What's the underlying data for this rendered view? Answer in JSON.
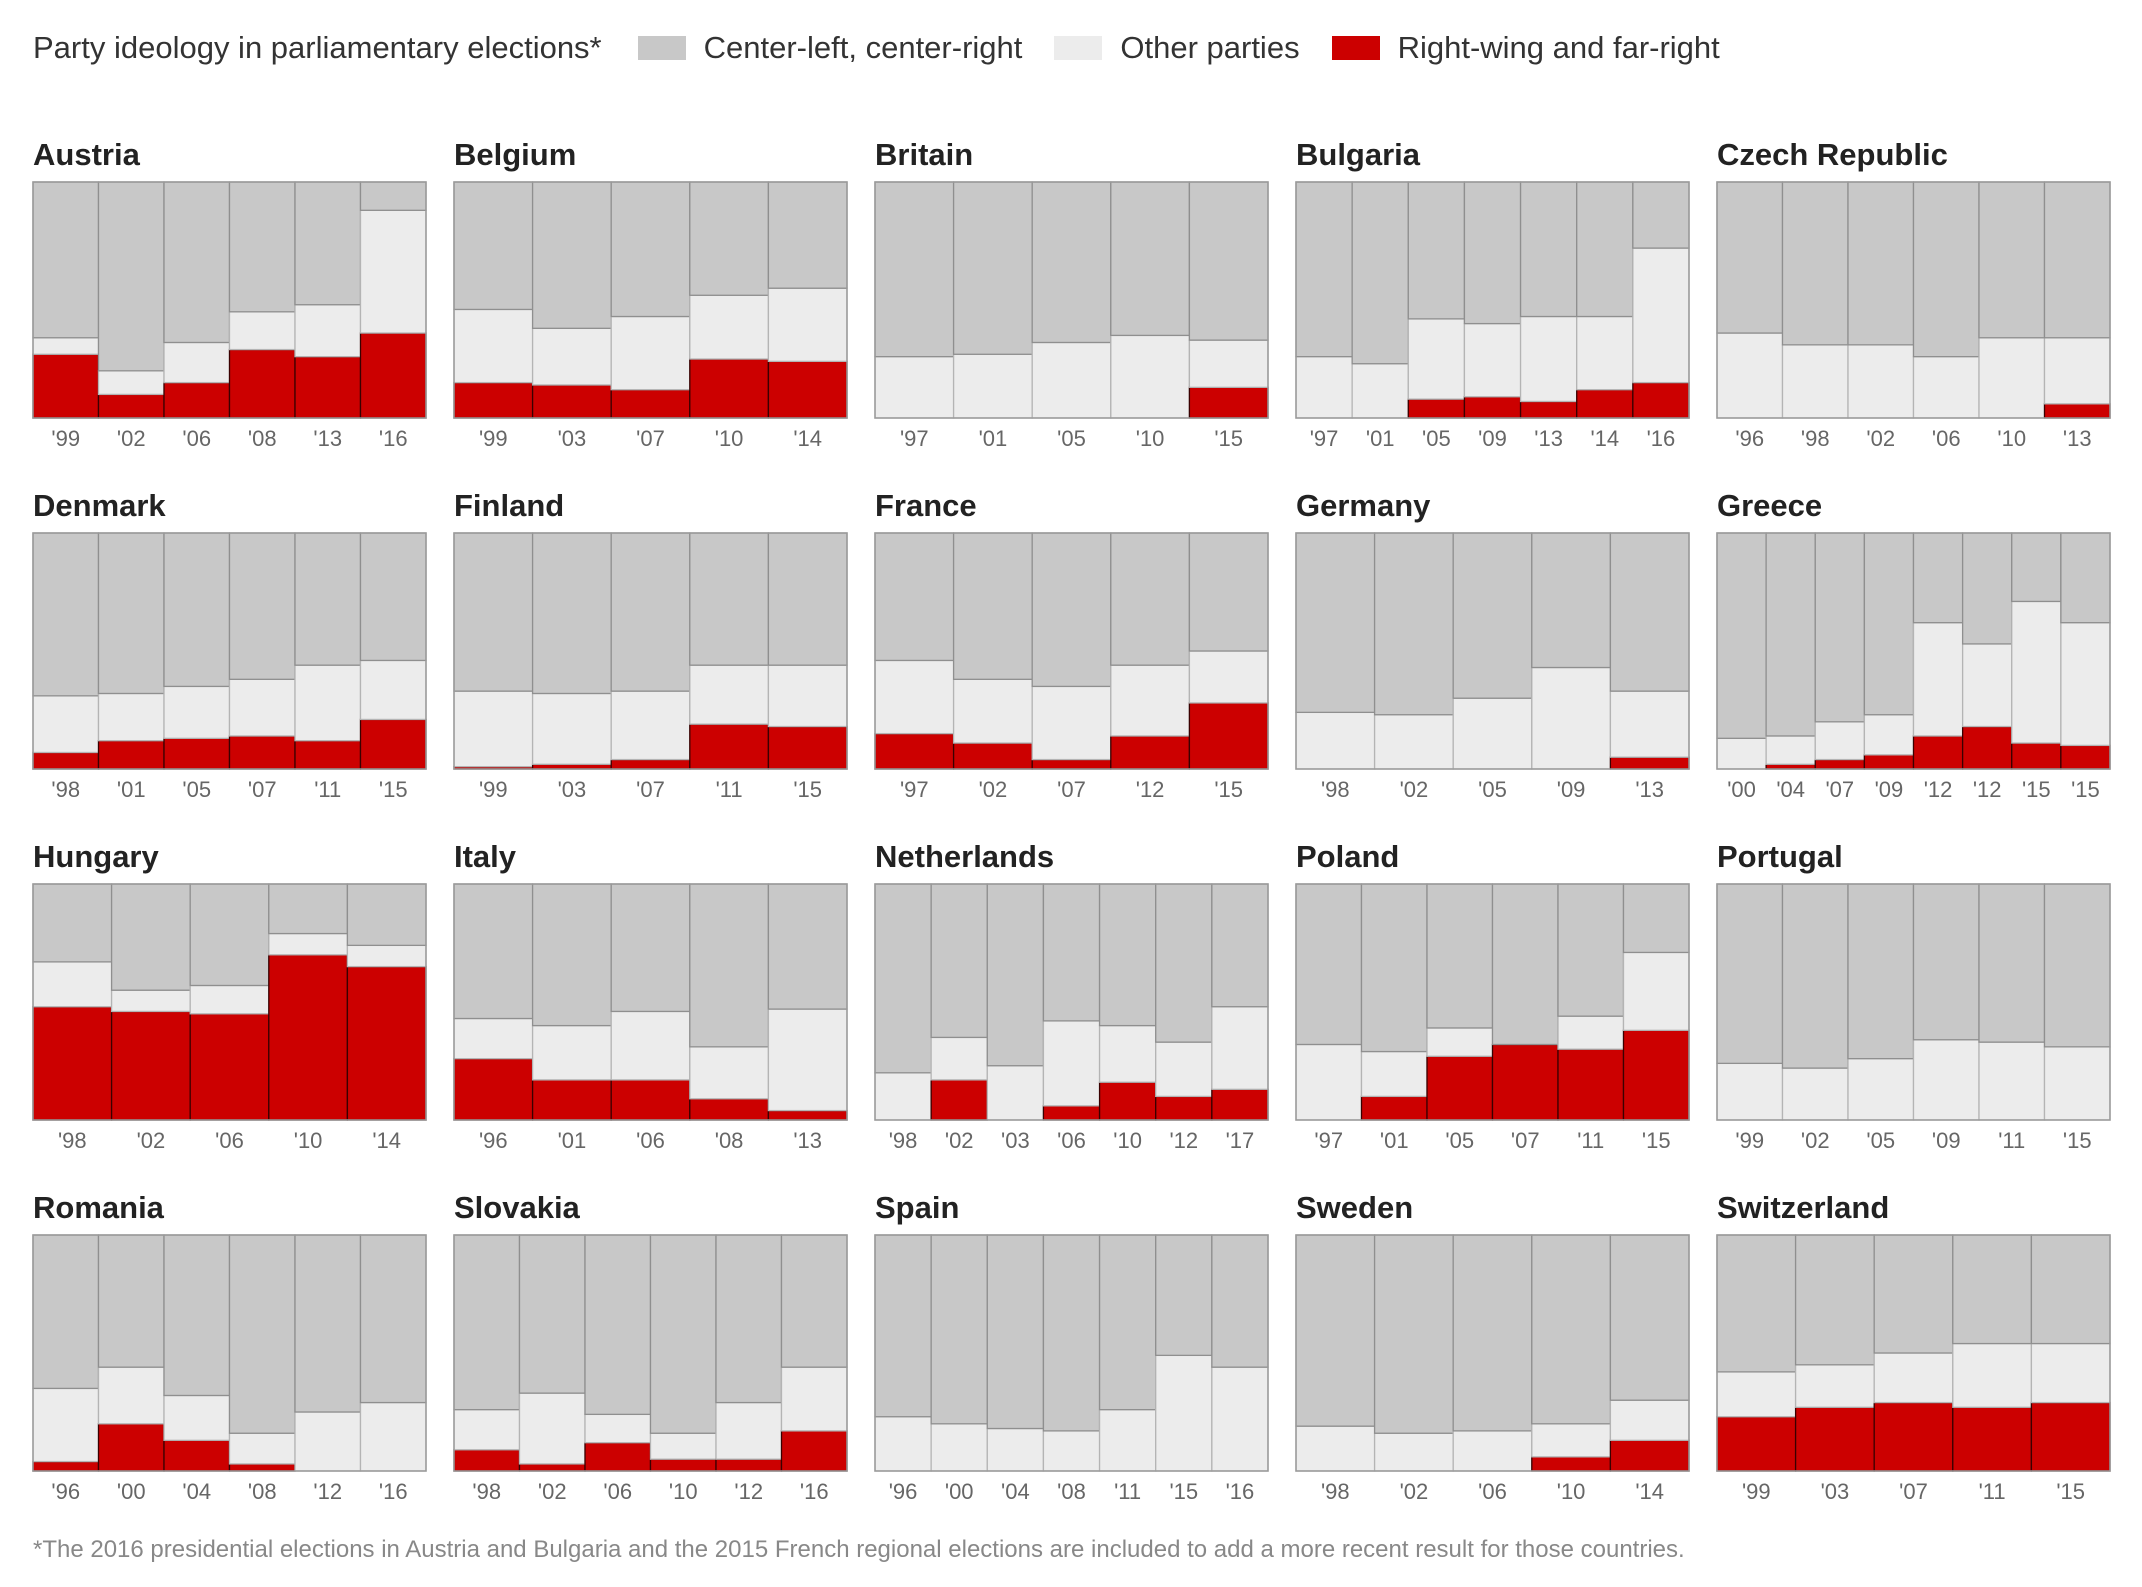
{
  "legend": {
    "label": "Party ideology in parliamentary elections*",
    "items": [
      {
        "name": "Center-left, center-right",
        "color": "#c8c8c8"
      },
      {
        "name": "Other parties",
        "color": "#ececec"
      },
      {
        "name": "Right-wing and far-right",
        "color": "#cc0000"
      }
    ]
  },
  "footnote": "*The 2016 presidential elections in Austria and Bulgaria and the 2015 French regional elections are included to add a more recent result for those countries.",
  "chart_data": {
    "type": "bar",
    "subtype": "stacked-bar-small-multiples",
    "units": "percent of vote",
    "ylim": [
      0,
      100
    ],
    "grid": false,
    "legend_position": "top-left",
    "series_colors": {
      "center": "#c8c8c8",
      "other": "#ececec",
      "right": "#cc0000"
    },
    "countries": [
      {
        "name": "Austria",
        "bars": [
          {
            "year": "'99",
            "right": 27,
            "other": 7,
            "center": 66
          },
          {
            "year": "'02",
            "right": 10,
            "other": 10,
            "center": 80
          },
          {
            "year": "'06",
            "right": 15,
            "other": 17,
            "center": 68
          },
          {
            "year": "'08",
            "right": 29,
            "other": 16,
            "center": 55
          },
          {
            "year": "'13",
            "right": 26,
            "other": 22,
            "center": 52
          },
          {
            "year": "'16",
            "right": 36,
            "other": 52,
            "center": 12
          }
        ]
      },
      {
        "name": "Belgium",
        "bars": [
          {
            "year": "'99",
            "right": 15,
            "other": 31,
            "center": 54
          },
          {
            "year": "'03",
            "right": 14,
            "other": 24,
            "center": 62
          },
          {
            "year": "'07",
            "right": 12,
            "other": 31,
            "center": 57
          },
          {
            "year": "'10",
            "right": 25,
            "other": 27,
            "center": 48
          },
          {
            "year": "'14",
            "right": 24,
            "other": 31,
            "center": 45
          }
        ]
      },
      {
        "name": "Britain",
        "bars": [
          {
            "year": "'97",
            "right": 0,
            "other": 26,
            "center": 74
          },
          {
            "year": "'01",
            "right": 0,
            "other": 27,
            "center": 73
          },
          {
            "year": "'05",
            "right": 0,
            "other": 32,
            "center": 68
          },
          {
            "year": "'10",
            "right": 0,
            "other": 35,
            "center": 65
          },
          {
            "year": "'15",
            "right": 13,
            "other": 20,
            "center": 67
          }
        ]
      },
      {
        "name": "Bulgaria",
        "bars": [
          {
            "year": "'97",
            "right": 0,
            "other": 26,
            "center": 74
          },
          {
            "year": "'01",
            "right": 0,
            "other": 23,
            "center": 77
          },
          {
            "year": "'05",
            "right": 8,
            "other": 34,
            "center": 58
          },
          {
            "year": "'09",
            "right": 9,
            "other": 31,
            "center": 60
          },
          {
            "year": "'13",
            "right": 7,
            "other": 36,
            "center": 57
          },
          {
            "year": "'14",
            "right": 12,
            "other": 31,
            "center": 57
          },
          {
            "year": "'16",
            "right": 15,
            "other": 57,
            "center": 28
          }
        ]
      },
      {
        "name": "Czech Republic",
        "bars": [
          {
            "year": "'96",
            "right": 0,
            "other": 36,
            "center": 64
          },
          {
            "year": "'98",
            "right": 0,
            "other": 31,
            "center": 69
          },
          {
            "year": "'02",
            "right": 0,
            "other": 31,
            "center": 69
          },
          {
            "year": "'06",
            "right": 0,
            "other": 26,
            "center": 74
          },
          {
            "year": "'10",
            "right": 0,
            "other": 34,
            "center": 66
          },
          {
            "year": "'13",
            "right": 6,
            "other": 28,
            "center": 66
          }
        ]
      },
      {
        "name": "Denmark",
        "bars": [
          {
            "year": "'98",
            "right": 7,
            "other": 24,
            "center": 69
          },
          {
            "year": "'01",
            "right": 12,
            "other": 20,
            "center": 68
          },
          {
            "year": "'05",
            "right": 13,
            "other": 22,
            "center": 65
          },
          {
            "year": "'07",
            "right": 14,
            "other": 24,
            "center": 62
          },
          {
            "year": "'11",
            "right": 12,
            "other": 32,
            "center": 56
          },
          {
            "year": "'15",
            "right": 21,
            "other": 25,
            "center": 54
          }
        ]
      },
      {
        "name": "Finland",
        "bars": [
          {
            "year": "'99",
            "right": 1,
            "other": 32,
            "center": 67
          },
          {
            "year": "'03",
            "right": 2,
            "other": 30,
            "center": 68
          },
          {
            "year": "'07",
            "right": 4,
            "other": 29,
            "center": 67
          },
          {
            "year": "'11",
            "right": 19,
            "other": 25,
            "center": 56
          },
          {
            "year": "'15",
            "right": 18,
            "other": 26,
            "center": 56
          }
        ]
      },
      {
        "name": "France",
        "bars": [
          {
            "year": "'97",
            "right": 15,
            "other": 31,
            "center": 54
          },
          {
            "year": "'02",
            "right": 11,
            "other": 27,
            "center": 62
          },
          {
            "year": "'07",
            "right": 4,
            "other": 31,
            "center": 65
          },
          {
            "year": "'12",
            "right": 14,
            "other": 30,
            "center": 56
          },
          {
            "year": "'15",
            "right": 28,
            "other": 22,
            "center": 50
          }
        ]
      },
      {
        "name": "Germany",
        "bars": [
          {
            "year": "'98",
            "right": 0,
            "other": 24,
            "center": 76
          },
          {
            "year": "'02",
            "right": 0,
            "other": 23,
            "center": 77
          },
          {
            "year": "'05",
            "right": 0,
            "other": 30,
            "center": 70
          },
          {
            "year": "'09",
            "right": 0,
            "other": 43,
            "center": 57
          },
          {
            "year": "'13",
            "right": 5,
            "other": 28,
            "center": 67
          }
        ]
      },
      {
        "name": "Greece",
        "bars": [
          {
            "year": "'00",
            "right": 0,
            "other": 13,
            "center": 87
          },
          {
            "year": "'04",
            "right": 2,
            "other": 12,
            "center": 86
          },
          {
            "year": "'07",
            "right": 4,
            "other": 16,
            "center": 80
          },
          {
            "year": "'09",
            "right": 6,
            "other": 17,
            "center": 77
          },
          {
            "year": "'12",
            "right": 14,
            "other": 48,
            "center": 38
          },
          {
            "year": "'12",
            "right": 18,
            "other": 35,
            "center": 47
          },
          {
            "year": "'15",
            "right": 11,
            "other": 60,
            "center": 29
          },
          {
            "year": "'15",
            "right": 10,
            "other": 52,
            "center": 38
          }
        ]
      },
      {
        "name": "Hungary",
        "bars": [
          {
            "year": "'98",
            "right": 48,
            "other": 19,
            "center": 33
          },
          {
            "year": "'02",
            "right": 46,
            "other": 9,
            "center": 45
          },
          {
            "year": "'06",
            "right": 45,
            "other": 12,
            "center": 43
          },
          {
            "year": "'10",
            "right": 70,
            "other": 9,
            "center": 21
          },
          {
            "year": "'14",
            "right": 65,
            "other": 9,
            "center": 26
          }
        ]
      },
      {
        "name": "Italy",
        "bars": [
          {
            "year": "'96",
            "right": 26,
            "other": 17,
            "center": 57
          },
          {
            "year": "'01",
            "right": 17,
            "other": 23,
            "center": 60
          },
          {
            "year": "'06",
            "right": 17,
            "other": 29,
            "center": 54
          },
          {
            "year": "'08",
            "right": 9,
            "other": 22,
            "center": 69
          },
          {
            "year": "'13",
            "right": 4,
            "other": 43,
            "center": 53
          }
        ]
      },
      {
        "name": "Netherlands",
        "bars": [
          {
            "year": "'98",
            "right": 0,
            "other": 20,
            "center": 80
          },
          {
            "year": "'02",
            "right": 17,
            "other": 18,
            "center": 65
          },
          {
            "year": "'03",
            "right": 0,
            "other": 23,
            "center": 77
          },
          {
            "year": "'06",
            "right": 6,
            "other": 36,
            "center": 58
          },
          {
            "year": "'10",
            "right": 16,
            "other": 24,
            "center": 60
          },
          {
            "year": "'12",
            "right": 10,
            "other": 23,
            "center": 67
          },
          {
            "year": "'17",
            "right": 13,
            "other": 35,
            "center": 52
          }
        ]
      },
      {
        "name": "Poland",
        "bars": [
          {
            "year": "'97",
            "right": 0,
            "other": 32,
            "center": 68
          },
          {
            "year": "'01",
            "right": 10,
            "other": 19,
            "center": 71
          },
          {
            "year": "'05",
            "right": 27,
            "other": 12,
            "center": 61
          },
          {
            "year": "'07",
            "right": 32,
            "other": 0,
            "center": 68
          },
          {
            "year": "'11",
            "right": 30,
            "other": 14,
            "center": 56
          },
          {
            "year": "'15",
            "right": 38,
            "other": 33,
            "center": 29
          }
        ]
      },
      {
        "name": "Portugal",
        "bars": [
          {
            "year": "'99",
            "right": 0,
            "other": 24,
            "center": 76
          },
          {
            "year": "'02",
            "right": 0,
            "other": 22,
            "center": 78
          },
          {
            "year": "'05",
            "right": 0,
            "other": 26,
            "center": 74
          },
          {
            "year": "'09",
            "right": 0,
            "other": 34,
            "center": 66
          },
          {
            "year": "'11",
            "right": 0,
            "other": 33,
            "center": 67
          },
          {
            "year": "'15",
            "right": 0,
            "other": 31,
            "center": 69
          }
        ]
      },
      {
        "name": "Romania",
        "bars": [
          {
            "year": "'96",
            "right": 4,
            "other": 31,
            "center": 65
          },
          {
            "year": "'00",
            "right": 20,
            "other": 24,
            "center": 56
          },
          {
            "year": "'04",
            "right": 13,
            "other": 19,
            "center": 68
          },
          {
            "year": "'08",
            "right": 3,
            "other": 13,
            "center": 84
          },
          {
            "year": "'12",
            "right": 0,
            "other": 25,
            "center": 75
          },
          {
            "year": "'16",
            "right": 0,
            "other": 29,
            "center": 71
          }
        ]
      },
      {
        "name": "Slovakia",
        "bars": [
          {
            "year": "'98",
            "right": 9,
            "other": 17,
            "center": 74
          },
          {
            "year": "'02",
            "right": 3,
            "other": 30,
            "center": 67
          },
          {
            "year": "'06",
            "right": 12,
            "other": 12,
            "center": 76
          },
          {
            "year": "'10",
            "right": 5,
            "other": 11,
            "center": 84
          },
          {
            "year": "'12",
            "right": 5,
            "other": 24,
            "center": 71
          },
          {
            "year": "'16",
            "right": 17,
            "other": 27,
            "center": 56
          }
        ]
      },
      {
        "name": "Spain",
        "bars": [
          {
            "year": "'96",
            "right": 0,
            "other": 23,
            "center": 77
          },
          {
            "year": "'00",
            "right": 0,
            "other": 20,
            "center": 80
          },
          {
            "year": "'04",
            "right": 0,
            "other": 18,
            "center": 82
          },
          {
            "year": "'08",
            "right": 0,
            "other": 17,
            "center": 83
          },
          {
            "year": "'11",
            "right": 0,
            "other": 26,
            "center": 74
          },
          {
            "year": "'15",
            "right": 0,
            "other": 49,
            "center": 51
          },
          {
            "year": "'16",
            "right": 0,
            "other": 44,
            "center": 56
          }
        ]
      },
      {
        "name": "Sweden",
        "bars": [
          {
            "year": "'98",
            "right": 0,
            "other": 19,
            "center": 81
          },
          {
            "year": "'02",
            "right": 0,
            "other": 16,
            "center": 84
          },
          {
            "year": "'06",
            "right": 0,
            "other": 17,
            "center": 83
          },
          {
            "year": "'10",
            "right": 6,
            "other": 14,
            "center": 80
          },
          {
            "year": "'14",
            "right": 13,
            "other": 17,
            "center": 70
          }
        ]
      },
      {
        "name": "Switzerland",
        "bars": [
          {
            "year": "'99",
            "right": 23,
            "other": 19,
            "center": 58
          },
          {
            "year": "'03",
            "right": 27,
            "other": 18,
            "center": 55
          },
          {
            "year": "'07",
            "right": 29,
            "other": 21,
            "center": 50
          },
          {
            "year": "'11",
            "right": 27,
            "other": 27,
            "center": 46
          },
          {
            "year": "'15",
            "right": 29,
            "other": 25,
            "center": 46
          }
        ]
      }
    ]
  }
}
